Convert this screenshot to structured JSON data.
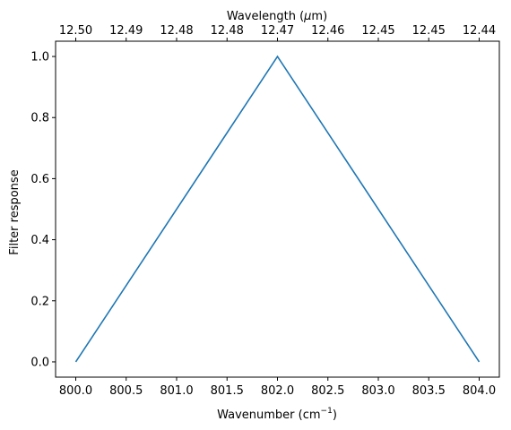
{
  "chart_data": {
    "type": "line",
    "x": [
      800.0,
      802.0,
      804.0
    ],
    "y": [
      0.0,
      1.0,
      0.0
    ],
    "xlim": [
      799.8,
      804.2
    ],
    "ylim": [
      -0.05,
      1.05
    ],
    "line_color": "#1f77b4",
    "grid": false,
    "xlabel": "Wavenumber (cm",
    "xlabel_sup": "−1",
    "xlabel_close": ")",
    "ylabel": "Filter response",
    "top_xlabel_prefix": "Wavelength (",
    "top_xlabel_mu": "μ",
    "top_xlabel_suffix": "m)",
    "x_ticks": [
      800.0,
      800.5,
      801.0,
      801.5,
      802.0,
      802.5,
      803.0,
      803.5,
      804.0
    ],
    "x_tick_labels": [
      "800.0",
      "800.5",
      "801.0",
      "801.5",
      "802.0",
      "802.5",
      "803.0",
      "803.5",
      "804.0"
    ],
    "top_tick_labels": [
      "12.50",
      "12.49",
      "12.48",
      "12.48",
      "12.47",
      "12.46",
      "12.45",
      "12.45",
      "12.44"
    ],
    "y_ticks": [
      0.0,
      0.2,
      0.4,
      0.6,
      0.8,
      1.0
    ],
    "y_tick_labels": [
      "0.0",
      "0.2",
      "0.4",
      "0.6",
      "0.8",
      "1.0"
    ]
  }
}
